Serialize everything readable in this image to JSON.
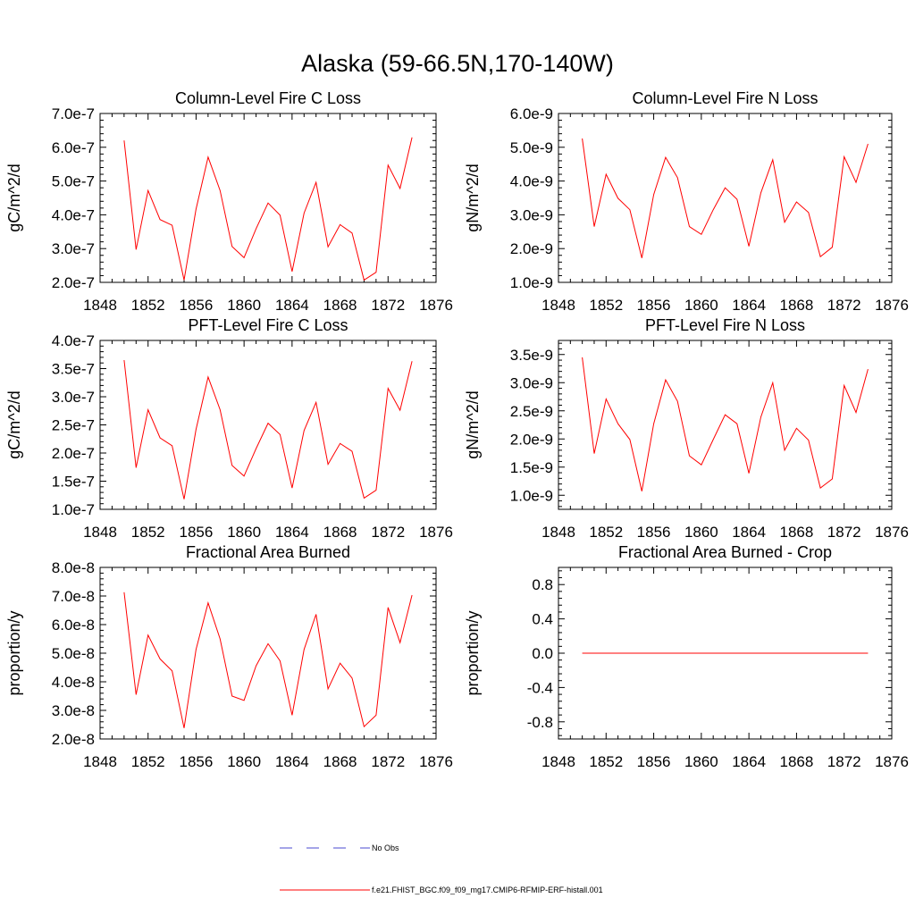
{
  "figure": {
    "title": "Alaska (59-66.5N,170-140W)"
  },
  "legend": {
    "obs_label": "No Obs",
    "model_label": "f.e21.FHIST_BGC.f09_f09_mg17.CMIP6-RFMIP-ERF-histall.001",
    "obs_color": "#4a4ad0",
    "model_color": "#ff0000"
  },
  "chart_data": [
    {
      "type": "line",
      "title": "Column-Level Fire C Loss",
      "ylabel": "gC/m^2/d",
      "xlim": [
        1848,
        1876
      ],
      "ylim": [
        2e-07,
        7e-07
      ],
      "xticks": [
        "1848",
        "1852",
        "1856",
        "1860",
        "1864",
        "1868",
        "1872",
        "1876"
      ],
      "yticks": [
        "2.0e-7",
        "3.0e-7",
        "4.0e-7",
        "5.0e-7",
        "6.0e-7",
        "7.0e-7"
      ],
      "x": [
        1850,
        1851,
        1852,
        1853,
        1854,
        1855,
        1856,
        1857,
        1858,
        1859,
        1860,
        1861,
        1862,
        1863,
        1864,
        1865,
        1866,
        1867,
        1868,
        1869,
        1870,
        1871,
        1872,
        1873,
        1874
      ],
      "series": [
        {
          "name": "f.e21.FHIST_BGC.f09_f09_mg17.CMIP6-RFMIP-ERF-histall.001",
          "values": [
            6.2e-07,
            2.97e-07,
            4.72e-07,
            3.86e-07,
            3.69e-07,
            2.07e-07,
            4.17e-07,
            5.71e-07,
            4.72e-07,
            3.06e-07,
            2.73e-07,
            3.59e-07,
            4.35e-07,
            3.99e-07,
            2.32e-07,
            4.05e-07,
            4.96e-07,
            3.05e-07,
            3.71e-07,
            3.46e-07,
            2.07e-07,
            2.3e-07,
            5.47e-07,
            4.78e-07,
            6.29e-07
          ]
        }
      ]
    },
    {
      "type": "line",
      "title": "Column-Level Fire N Loss",
      "ylabel": "gN/m^2/d",
      "xlim": [
        1848,
        1876
      ],
      "ylim": [
        1e-09,
        6e-09
      ],
      "xticks": [
        "1848",
        "1852",
        "1856",
        "1860",
        "1864",
        "1868",
        "1872",
        "1876"
      ],
      "yticks": [
        "1.0e-9",
        "2.0e-9",
        "3.0e-9",
        "4.0e-9",
        "5.0e-9",
        "6.0e-9"
      ],
      "x": [
        1850,
        1851,
        1852,
        1853,
        1854,
        1855,
        1856,
        1857,
        1858,
        1859,
        1860,
        1861,
        1862,
        1863,
        1864,
        1865,
        1866,
        1867,
        1868,
        1869,
        1870,
        1871,
        1872,
        1873,
        1874
      ],
      "series": [
        {
          "name": "f.e21.FHIST_BGC.f09_f09_mg17.CMIP6-RFMIP-ERF-histall.001",
          "values": [
            5.26e-09,
            2.65e-09,
            4.2e-09,
            3.49e-09,
            3.15e-09,
            1.72e-09,
            3.6e-09,
            4.7e-09,
            4.1e-09,
            2.65e-09,
            2.42e-09,
            3.15e-09,
            3.8e-09,
            3.46e-09,
            2.07e-09,
            3.65e-09,
            4.63e-09,
            2.78e-09,
            3.38e-09,
            3.07e-09,
            1.76e-09,
            2.04e-09,
            4.72e-09,
            3.96e-09,
            5.1e-09
          ]
        }
      ]
    },
    {
      "type": "line",
      "title": "PFT-Level Fire C Loss",
      "ylabel": "gC/m^2/d",
      "xlim": [
        1848,
        1876
      ],
      "ylim": [
        1e-07,
        4e-07
      ],
      "xticks": [
        "1848",
        "1852",
        "1856",
        "1860",
        "1864",
        "1868",
        "1872",
        "1876"
      ],
      "yticks": [
        "1.0e-7",
        "1.5e-7",
        "2.0e-7",
        "2.5e-7",
        "3.0e-7",
        "3.5e-7",
        "4.0e-7"
      ],
      "x": [
        1850,
        1851,
        1852,
        1853,
        1854,
        1855,
        1856,
        1857,
        1858,
        1859,
        1860,
        1861,
        1862,
        1863,
        1864,
        1865,
        1866,
        1867,
        1868,
        1869,
        1870,
        1871,
        1872,
        1873,
        1874
      ],
      "series": [
        {
          "name": "f.e21.FHIST_BGC.f09_f09_mg17.CMIP6-RFMIP-ERF-histall.001",
          "values": [
            3.65e-07,
            1.74e-07,
            2.77e-07,
            2.27e-07,
            2.13e-07,
            1.18e-07,
            2.42e-07,
            3.35e-07,
            2.77e-07,
            1.78e-07,
            1.59e-07,
            2.08e-07,
            2.53e-07,
            2.33e-07,
            1.38e-07,
            2.4e-07,
            2.9e-07,
            1.8e-07,
            2.17e-07,
            2.03e-07,
            1.2e-07,
            1.34e-07,
            3.15e-07,
            2.76e-07,
            3.63e-07
          ]
        }
      ]
    },
    {
      "type": "line",
      "title": "PFT-Level Fire N Loss",
      "ylabel": "gN/m^2/d",
      "xlim": [
        1848,
        1876
      ],
      "ylim": [
        7.5e-10,
        3.75e-09
      ],
      "xticks": [
        "1848",
        "1852",
        "1856",
        "1860",
        "1864",
        "1868",
        "1872",
        "1876"
      ],
      "yticks": [
        "1.0e-9",
        "1.5e-9",
        "2.0e-9",
        "2.5e-9",
        "3.0e-9",
        "3.5e-9"
      ],
      "x": [
        1850,
        1851,
        1852,
        1853,
        1854,
        1855,
        1856,
        1857,
        1858,
        1859,
        1860,
        1861,
        1862,
        1863,
        1864,
        1865,
        1866,
        1867,
        1868,
        1869,
        1870,
        1871,
        1872,
        1873,
        1874
      ],
      "series": [
        {
          "name": "f.e21.FHIST_BGC.f09_f09_mg17.CMIP6-RFMIP-ERF-histall.001",
          "values": [
            3.45e-09,
            1.74e-09,
            2.71e-09,
            2.27e-09,
            1.99e-09,
            1.07e-09,
            2.27e-09,
            3.05e-09,
            2.67e-09,
            1.7e-09,
            1.54e-09,
            1.99e-09,
            2.43e-09,
            2.27e-09,
            1.39e-09,
            2.39e-09,
            3e-09,
            1.8e-09,
            2.19e-09,
            1.98e-09,
            1.13e-09,
            1.29e-09,
            2.95e-09,
            2.47e-09,
            3.24e-09
          ]
        }
      ]
    },
    {
      "type": "line",
      "title": "Fractional Area Burned",
      "ylabel": "proportion/y",
      "xlim": [
        1848,
        1876
      ],
      "ylim": [
        2e-08,
        8e-08
      ],
      "xticks": [
        "1848",
        "1852",
        "1856",
        "1860",
        "1864",
        "1868",
        "1872",
        "1876"
      ],
      "yticks": [
        "2.0e-8",
        "3.0e-8",
        "4.0e-8",
        "5.0e-8",
        "6.0e-8",
        "7.0e-8",
        "8.0e-8"
      ],
      "x": [
        1850,
        1851,
        1852,
        1853,
        1854,
        1855,
        1856,
        1857,
        1858,
        1859,
        1860,
        1861,
        1862,
        1863,
        1864,
        1865,
        1866,
        1867,
        1868,
        1869,
        1870,
        1871,
        1872,
        1873,
        1874
      ],
      "series": [
        {
          "name": "f.e21.FHIST_BGC.f09_f09_mg17.CMIP6-RFMIP-ERF-histall.001",
          "values": [
            7.13e-08,
            3.55e-08,
            5.63e-08,
            4.8e-08,
            4.38e-08,
            2.38e-08,
            5.13e-08,
            6.76e-08,
            5.5e-08,
            3.5e-08,
            3.35e-08,
            4.56e-08,
            5.33e-08,
            4.73e-08,
            2.83e-08,
            5.13e-08,
            6.36e-08,
            3.75e-08,
            4.65e-08,
            4.13e-08,
            2.43e-08,
            2.83e-08,
            6.6e-08,
            5.37e-08,
            7.03e-08
          ]
        }
      ]
    },
    {
      "type": "line",
      "title": "Fractional Area Burned - Crop",
      "ylabel": "proportion/y",
      "xlim": [
        1848,
        1876
      ],
      "ylim": [
        -1.0,
        1.0
      ],
      "xticks": [
        "1848",
        "1852",
        "1856",
        "1860",
        "1864",
        "1868",
        "1872",
        "1876"
      ],
      "yticks": [
        "-0.8",
        "-0.4",
        "0.0",
        "0.4",
        "0.8"
      ],
      "x": [
        1850,
        1851,
        1852,
        1853,
        1854,
        1855,
        1856,
        1857,
        1858,
        1859,
        1860,
        1861,
        1862,
        1863,
        1864,
        1865,
        1866,
        1867,
        1868,
        1869,
        1870,
        1871,
        1872,
        1873,
        1874
      ],
      "series": [
        {
          "name": "f.e21.FHIST_BGC.f09_f09_mg17.CMIP6-RFMIP-ERF-histall.001",
          "values": [
            0,
            0,
            0,
            0,
            0,
            0,
            0,
            0,
            0,
            0,
            0,
            0,
            0,
            0,
            0,
            0,
            0,
            0,
            0,
            0,
            0,
            0,
            0,
            0,
            0
          ]
        }
      ]
    }
  ]
}
